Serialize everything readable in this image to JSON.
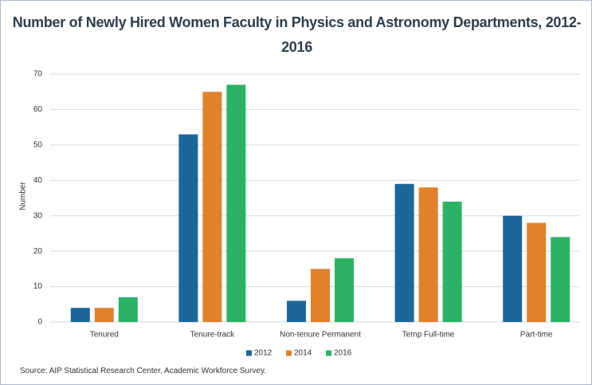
{
  "chart_data": {
    "type": "bar",
    "title": "Number of Newly Hired Women Faculty in Physics and Astronomy Departments, 2012-2016",
    "y_label": "Number",
    "source": "Source: AIP Statistical Research Center, Academic Workforce Survey.",
    "categories": [
      "Tenured",
      "Tenure-track",
      "Non-tenure Permanent",
      "Temp Full-time",
      "Part-time"
    ],
    "series": [
      {
        "name": "2012",
        "color": "#1c6699",
        "values": [
          4,
          53,
          6,
          39,
          30
        ]
      },
      {
        "name": "2014",
        "color": "#e0812c",
        "values": [
          4,
          65,
          15,
          38,
          28
        ]
      },
      {
        "name": "2016",
        "color": "#2bb264",
        "values": [
          7,
          67,
          18,
          34,
          24
        ]
      }
    ],
    "ylim": [
      0,
      70
    ],
    "yticks": [
      0,
      10,
      20,
      30,
      40,
      50,
      60,
      70
    ],
    "grid": true,
    "legend": "bottom"
  }
}
